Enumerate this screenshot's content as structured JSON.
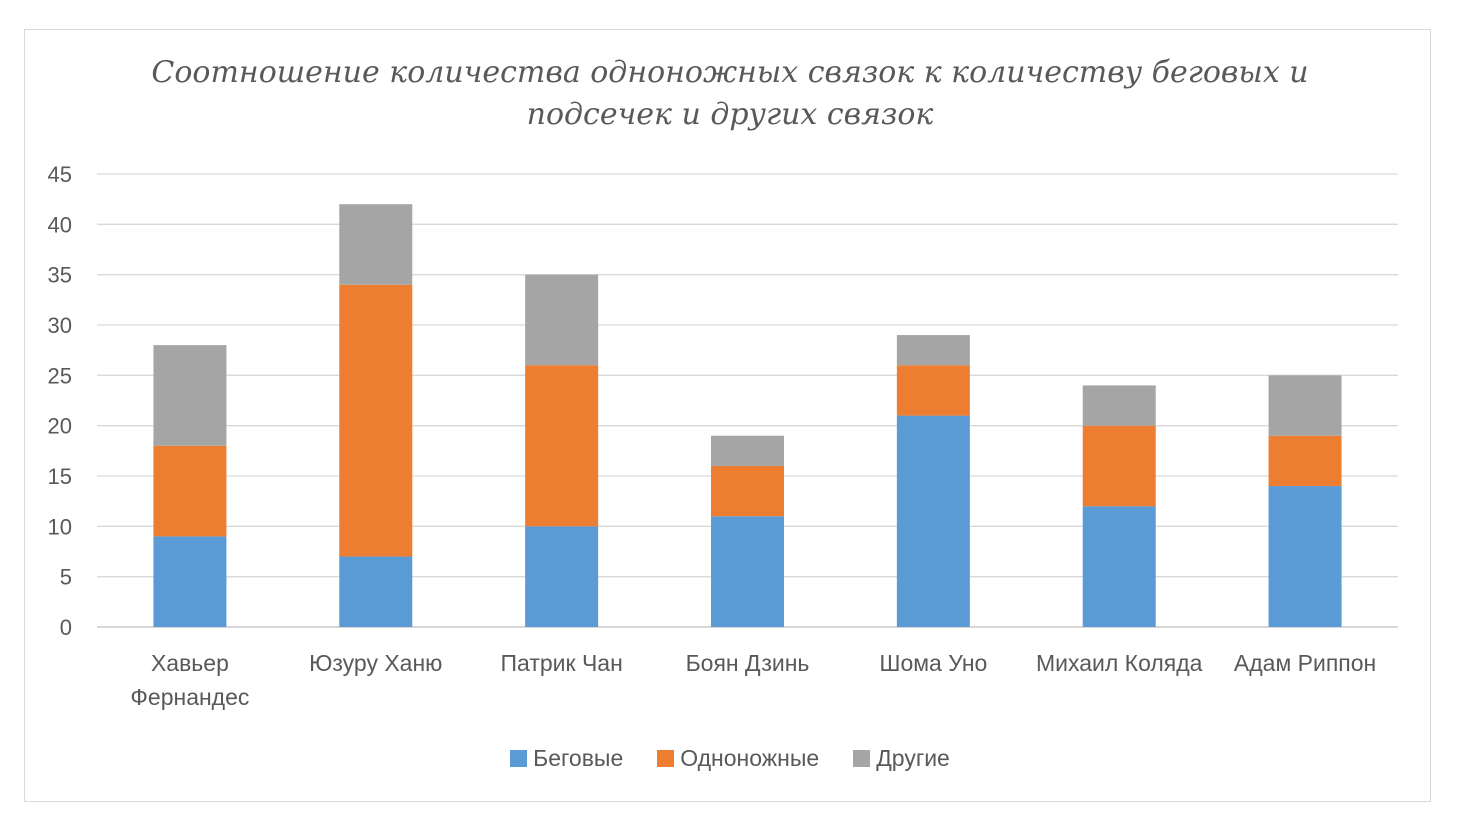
{
  "chart_data": {
    "type": "bar",
    "stacked": true,
    "title": "Соотношение количества одноножных связок к количеству беговых и подсечек и других связок",
    "title_lines": [
      "Соотношение количества одноножных связок к количеству беговых и",
      "подсечек и других связок"
    ],
    "categories": [
      "Хавьер Фернандес",
      "Юзуру Ханю",
      "Патрик Чан",
      "Боян Дзинь",
      "Шома Уно",
      "Михаил Коляда",
      "Адам Риппон"
    ],
    "category_lines": [
      [
        "Хавьер",
        "Фернандес"
      ],
      [
        "Юзуру Ханю"
      ],
      [
        "Патрик Чан"
      ],
      [
        "Боян Дзинь"
      ],
      [
        "Шома Уно"
      ],
      [
        "Михаил Коляда"
      ],
      [
        "Адам Риппон"
      ]
    ],
    "series": [
      {
        "name": "Беговые",
        "color": "#5b9bd5",
        "values": [
          9,
          7,
          10,
          11,
          21,
          12,
          14
        ]
      },
      {
        "name": "Одноножные",
        "color": "#ed7d31",
        "values": [
          9,
          27,
          16,
          5,
          5,
          8,
          5
        ]
      },
      {
        "name": "Другие",
        "color": "#a5a5a5",
        "values": [
          10,
          8,
          9,
          3,
          3,
          4,
          6
        ]
      }
    ],
    "ylim": [
      0,
      45
    ],
    "yticks": [
      0,
      5,
      10,
      15,
      20,
      25,
      30,
      35,
      40,
      45
    ],
    "xlabel": "",
    "ylabel": "",
    "grid": true,
    "legend_position": "bottom"
  }
}
